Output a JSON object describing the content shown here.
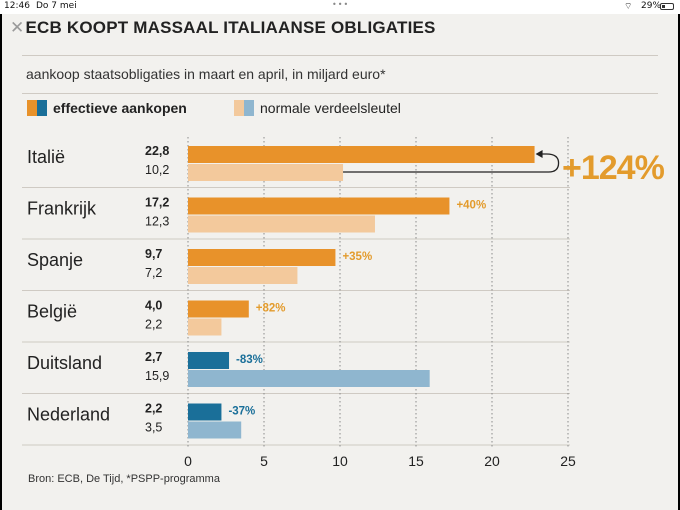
{
  "status_bar": {
    "time": "12:46",
    "date": "Do 7 mei",
    "dots": "•••",
    "wifi": "⌔",
    "battery": "29%"
  },
  "title": "ECB KOOPT MASSAAL ITALIAANSE OBLIGATIES",
  "title_mark": "✕",
  "subtitle": "aankoop staatsobligaties in maart en april, in miljard euro*",
  "legend": {
    "effective": "effectieve aankopen",
    "normal": "normale verdeelsleutel"
  },
  "footnote": "Bron:  ECB, De Tijd, *PSPP-programma",
  "colors": {
    "orange": "#e8922a",
    "orange_light": "#f3c99c",
    "blue": "#1a6f99",
    "blue_light": "#8fb6cf",
    "pct_orange": "#e39b2c",
    "pct_blue": "#1a6f99"
  },
  "chart_data": {
    "type": "bar",
    "orientation": "horizontal",
    "title": "ECB KOOPT MASSAAL ITALIAANSE OBLIGATIES",
    "subtitle": "aankoop staatsobligaties in maart en april, in miljard euro*",
    "categories": [
      "Italië",
      "Frankrijk",
      "Spanje",
      "België",
      "Duitsland",
      "Nederland"
    ],
    "series": [
      {
        "name": "effectieve aankopen",
        "values": [
          22.8,
          17.2,
          9.7,
          4.0,
          2.7,
          2.2
        ],
        "labels": [
          "22,8",
          "17,2",
          "9,7",
          "4,0",
          "2,7",
          "2,2"
        ]
      },
      {
        "name": "normale verdeelsleutel",
        "values": [
          10.2,
          12.3,
          7.2,
          2.2,
          15.9,
          3.5
        ],
        "labels": [
          "10,2",
          "12,3",
          "7,2",
          "2,2",
          "15,9",
          "3,5"
        ]
      }
    ],
    "annotations": [
      "+124%",
      "+40%",
      "+35%",
      "+82%",
      "-83%",
      "-37%"
    ],
    "xlim": [
      0,
      25
    ],
    "xticks": [
      0,
      5,
      10,
      15,
      20,
      25
    ],
    "grid": "vertical dotted",
    "legend_position": "top"
  }
}
